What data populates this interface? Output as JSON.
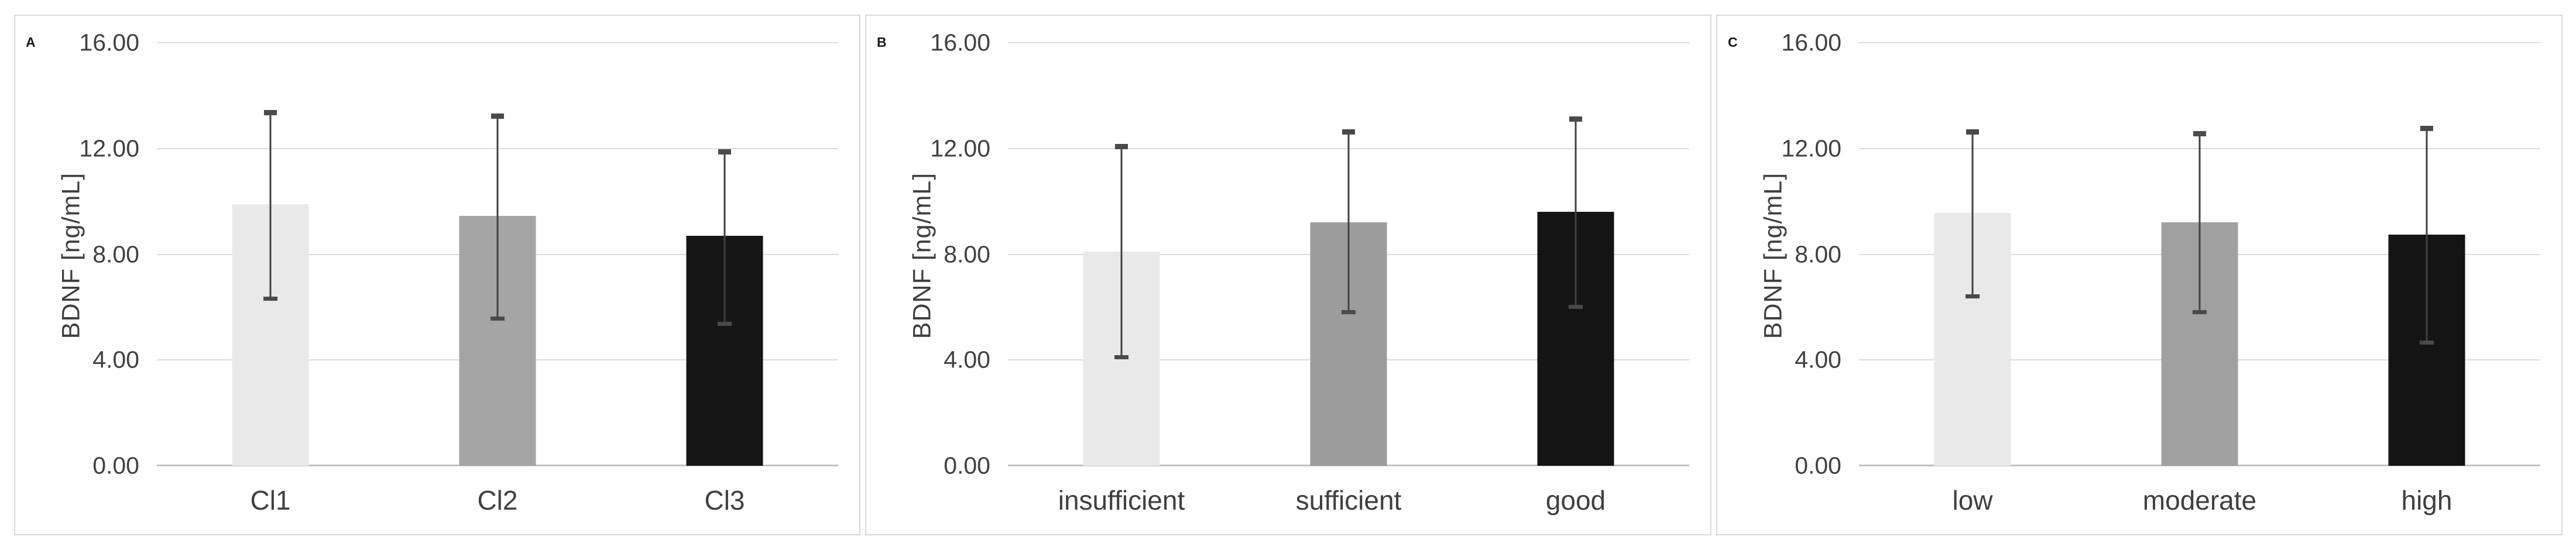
{
  "figure": {
    "background": "#ffffff",
    "panel_border_color": "#d9d9d9",
    "gridline_color": "#dcdcdc",
    "axis_line_color": "#c2c2c2",
    "error_bar_color": "#414141",
    "tick_label_color": "#404040",
    "category_label_color": "#3f3f3f"
  },
  "chart_data": [
    {
      "type": "bar",
      "panel_label": "A",
      "ylabel": "BDNF [ng/mL]",
      "ylim": [
        0,
        16
      ],
      "yticks": [
        0,
        4,
        8,
        12,
        16
      ],
      "ytick_labels": [
        "0.00",
        "4.00",
        "8.00",
        "12.00",
        "16.00"
      ],
      "grid": true,
      "legend": "none",
      "categories": [
        "Cl1",
        "Cl2",
        "Cl3"
      ],
      "values": [
        9.9,
        9.45,
        8.7
      ],
      "error_top": [
        13.4,
        13.25,
        11.9
      ],
      "error_bottom": [
        6.3,
        5.55,
        5.35
      ],
      "bar_colors": [
        "#e9e9e9",
        "#a5a5a5",
        "#161616"
      ]
    },
    {
      "type": "bar",
      "panel_label": "B",
      "ylabel": "BDNF [ng/mL]",
      "ylim": [
        0,
        16
      ],
      "yticks": [
        0,
        4,
        8,
        12,
        16
      ],
      "ytick_labels": [
        "0.00",
        "4.00",
        "8.00",
        "12.00",
        "16.00"
      ],
      "grid": true,
      "legend": "none",
      "categories": [
        "insufficient",
        "sufficient",
        "good"
      ],
      "values": [
        8.1,
        9.2,
        9.6
      ],
      "error_top": [
        12.1,
        12.65,
        13.15
      ],
      "error_bottom": [
        4.1,
        5.8,
        6.0
      ],
      "bar_colors": [
        "#e9e9e9",
        "#9c9c9c",
        "#141414"
      ]
    },
    {
      "type": "bar",
      "panel_label": "C",
      "ylabel": "BDNF [ng/mL]",
      "ylim": [
        0,
        16
      ],
      "yticks": [
        0,
        4,
        8,
        12,
        16
      ],
      "ytick_labels": [
        "0.00",
        "4.00",
        "8.00",
        "12.00",
        "16.00"
      ],
      "grid": true,
      "legend": "none",
      "categories": [
        "low",
        "moderate",
        "high"
      ],
      "values": [
        9.55,
        9.2,
        8.75
      ],
      "error_top": [
        12.65,
        12.6,
        12.8
      ],
      "error_bottom": [
        6.4,
        5.8,
        4.65
      ],
      "bar_colors": [
        "#e9e9e9",
        "#a0a0a0",
        "#141414"
      ]
    }
  ]
}
